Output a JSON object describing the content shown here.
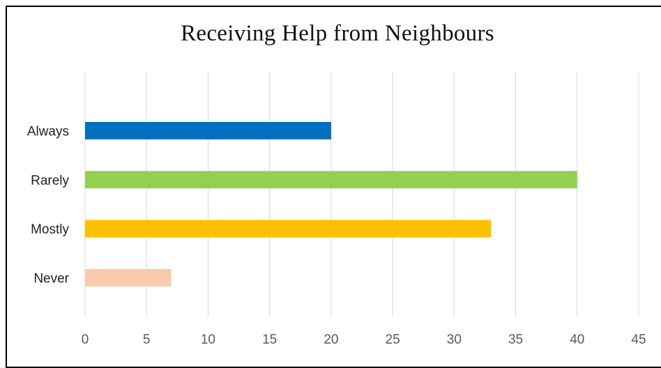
{
  "chart_data": {
    "type": "bar",
    "orientation": "horizontal",
    "title": "Receiving Help from Neighbours",
    "xlabel": "",
    "ylabel": "",
    "categories": [
      "Always",
      "Rarely",
      "Mostly",
      "Never"
    ],
    "values": [
      20,
      40,
      33,
      7
    ],
    "colors": [
      "#0070C0",
      "#92D050",
      "#FFC000",
      "#F8CBAD"
    ],
    "xlim": [
      0,
      45
    ],
    "xticks": [
      0,
      5,
      10,
      15,
      20,
      25,
      30,
      35,
      40,
      45
    ],
    "gridlines": true,
    "gridline_color": "#D9D9D9",
    "legend": false
  }
}
